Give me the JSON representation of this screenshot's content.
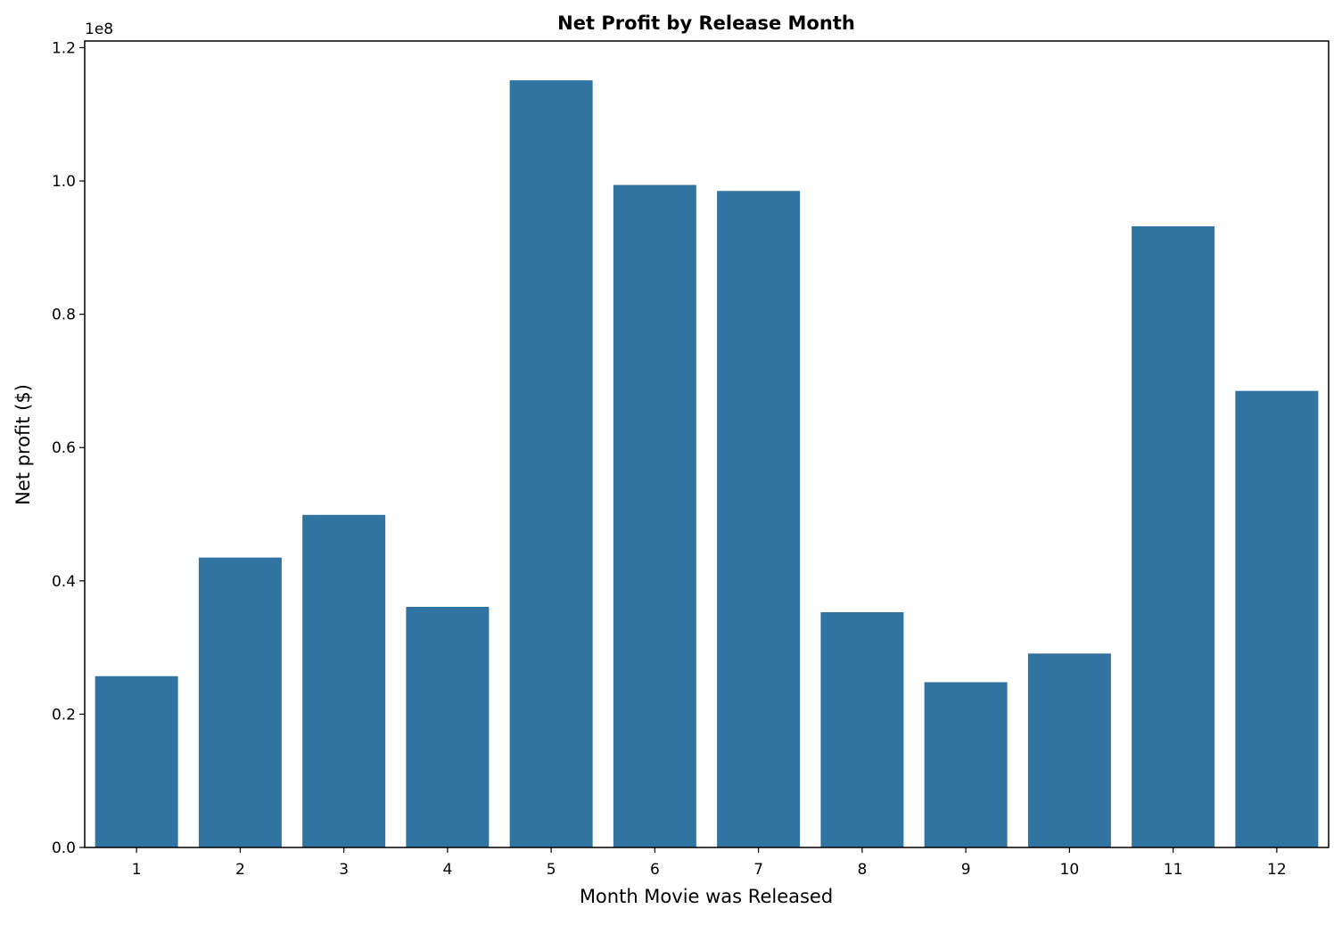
{
  "chart_data": {
    "type": "bar",
    "title": "Net Profit by Release Month",
    "xlabel": "Month Movie was Released",
    "ylabel": "Net profit ($)",
    "y_offset_label": "1e8",
    "y_scale": 100000000,
    "categories": [
      "1",
      "2",
      "3",
      "4",
      "5",
      "6",
      "7",
      "8",
      "9",
      "10",
      "11",
      "12"
    ],
    "values": [
      25700000,
      43500000,
      49900000,
      36100000,
      115100000,
      99400000,
      98500000,
      35300000,
      24800000,
      29100000,
      93200000,
      68500000
    ],
    "ylim": [
      0,
      121000000
    ],
    "yticks": [
      0,
      20000000,
      40000000,
      60000000,
      80000000,
      100000000,
      120000000
    ],
    "ytick_labels": [
      "0.0",
      "0.2",
      "0.4",
      "0.6",
      "0.8",
      "1.0",
      "1.2"
    ],
    "grid": false,
    "bar_color": "#3274a1"
  }
}
